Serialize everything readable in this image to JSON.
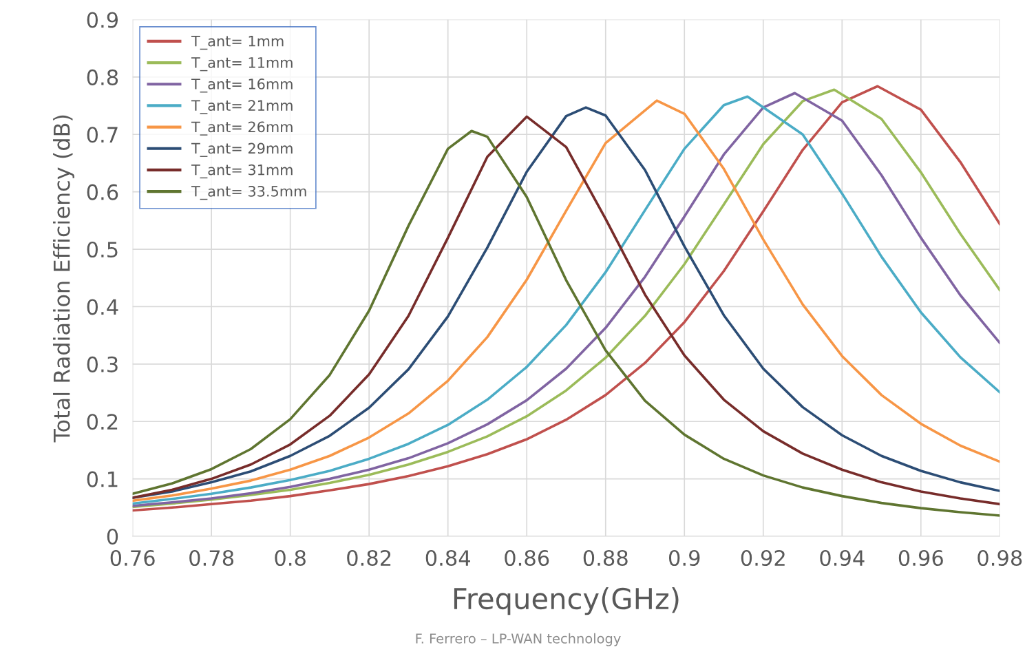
{
  "chart_data": {
    "type": "line",
    "xlabel": "Frequency(GHz)",
    "ylabel": "Total Radiation Efficiency (dB)",
    "annotations": [
      "F. Ferrero – LP-WAN technology"
    ],
    "xlim": [
      0.76,
      0.98
    ],
    "xticks": [
      0.76,
      0.78,
      0.8,
      0.82,
      0.84,
      0.86,
      0.88,
      0.9,
      0.92,
      0.94,
      0.96,
      0.98
    ],
    "ylim": [
      0,
      0.9
    ],
    "yticks": [
      0,
      0.1,
      0.2,
      0.3,
      0.4,
      0.5,
      0.6,
      0.7,
      0.8,
      0.9
    ],
    "grid": true,
    "legend": "top left",
    "marker": "none",
    "line_style": "solid",
    "series": [
      {
        "name": "T_ant= 1mm",
        "color": "#c0504d",
        "x": [
          0.76,
          0.77,
          0.78,
          0.79,
          0.8,
          0.81,
          0.82,
          0.83,
          0.84,
          0.85,
          0.86,
          0.87,
          0.88,
          0.89,
          0.9,
          0.91,
          0.92,
          0.93,
          0.94,
          0.949,
          0.96,
          0.97,
          0.98
        ],
        "values": [
          0.045,
          0.05,
          0.056,
          0.062,
          0.07,
          0.08,
          0.091,
          0.105,
          0.122,
          0.143,
          0.169,
          0.203,
          0.246,
          0.302,
          0.373,
          0.462,
          0.566,
          0.673,
          0.756,
          0.784,
          0.743,
          0.652,
          0.544
        ]
      },
      {
        "name": "T_ant= 11mm",
        "color": "#9bbb59",
        "x": [
          0.76,
          0.77,
          0.78,
          0.79,
          0.8,
          0.81,
          0.82,
          0.83,
          0.84,
          0.85,
          0.86,
          0.87,
          0.88,
          0.89,
          0.9,
          0.91,
          0.92,
          0.93,
          0.938,
          0.95,
          0.96,
          0.97,
          0.98
        ],
        "values": [
          0.051,
          0.057,
          0.064,
          0.072,
          0.081,
          0.093,
          0.107,
          0.125,
          0.147,
          0.174,
          0.209,
          0.254,
          0.311,
          0.384,
          0.474,
          0.578,
          0.683,
          0.758,
          0.778,
          0.727,
          0.634,
          0.527,
          0.429
        ]
      },
      {
        "name": "T_ant= 16mm",
        "color": "#8064a2",
        "x": [
          0.76,
          0.77,
          0.78,
          0.79,
          0.8,
          0.81,
          0.82,
          0.83,
          0.84,
          0.85,
          0.86,
          0.87,
          0.88,
          0.89,
          0.9,
          0.91,
          0.92,
          0.928,
          0.94,
          0.95,
          0.96,
          0.97,
          0.98
        ],
        "values": [
          0.053,
          0.059,
          0.066,
          0.075,
          0.086,
          0.1,
          0.116,
          0.136,
          0.162,
          0.195,
          0.237,
          0.292,
          0.363,
          0.452,
          0.557,
          0.665,
          0.747,
          0.772,
          0.724,
          0.629,
          0.52,
          0.42,
          0.337
        ]
      },
      {
        "name": "T_ant= 21mm",
        "color": "#4bacc6",
        "x": [
          0.76,
          0.77,
          0.78,
          0.79,
          0.8,
          0.81,
          0.82,
          0.83,
          0.84,
          0.85,
          0.86,
          0.87,
          0.88,
          0.89,
          0.9,
          0.91,
          0.916,
          0.93,
          0.94,
          0.95,
          0.96,
          0.97,
          0.98
        ],
        "values": [
          0.057,
          0.065,
          0.074,
          0.085,
          0.098,
          0.114,
          0.135,
          0.161,
          0.194,
          0.238,
          0.295,
          0.368,
          0.46,
          0.568,
          0.675,
          0.751,
          0.766,
          0.7,
          0.597,
          0.487,
          0.39,
          0.312,
          0.251
        ]
      },
      {
        "name": "T_ant= 26mm",
        "color": "#f79646",
        "x": [
          0.76,
          0.77,
          0.78,
          0.79,
          0.8,
          0.81,
          0.82,
          0.83,
          0.84,
          0.85,
          0.86,
          0.87,
          0.88,
          0.893,
          0.9,
          0.91,
          0.92,
          0.93,
          0.94,
          0.95,
          0.96,
          0.97,
          0.98
        ],
        "values": [
          0.062,
          0.071,
          0.083,
          0.097,
          0.116,
          0.14,
          0.172,
          0.214,
          0.271,
          0.347,
          0.447,
          0.567,
          0.685,
          0.759,
          0.736,
          0.64,
          0.517,
          0.404,
          0.314,
          0.246,
          0.196,
          0.158,
          0.13
        ]
      },
      {
        "name": "T_ant= 29mm",
        "color": "#2c4d75",
        "x": [
          0.76,
          0.77,
          0.78,
          0.79,
          0.8,
          0.81,
          0.82,
          0.83,
          0.84,
          0.85,
          0.86,
          0.87,
          0.875,
          0.88,
          0.89,
          0.9,
          0.91,
          0.92,
          0.93,
          0.94,
          0.95,
          0.96,
          0.97,
          0.98
        ],
        "values": [
          0.067,
          0.078,
          0.094,
          0.113,
          0.14,
          0.175,
          0.224,
          0.291,
          0.383,
          0.503,
          0.635,
          0.732,
          0.747,
          0.733,
          0.638,
          0.505,
          0.385,
          0.292,
          0.225,
          0.176,
          0.14,
          0.114,
          0.094,
          0.079
        ]
      },
      {
        "name": "T_ant= 31mm",
        "color": "#772c2a",
        "x": [
          0.76,
          0.77,
          0.78,
          0.79,
          0.8,
          0.81,
          0.82,
          0.83,
          0.84,
          0.85,
          0.86,
          0.87,
          0.88,
          0.89,
          0.9,
          0.91,
          0.92,
          0.93,
          0.94,
          0.95,
          0.96,
          0.97,
          0.98
        ],
        "values": [
          0.067,
          0.081,
          0.1,
          0.125,
          0.16,
          0.21,
          0.282,
          0.384,
          0.52,
          0.661,
          0.731,
          0.678,
          0.553,
          0.421,
          0.315,
          0.238,
          0.183,
          0.144,
          0.116,
          0.094,
          0.078,
          0.066,
          0.056
        ]
      },
      {
        "name": "T_ant= 33.5mm",
        "color": "#5f7530",
        "x": [
          0.76,
          0.77,
          0.78,
          0.79,
          0.8,
          0.81,
          0.82,
          0.83,
          0.84,
          0.846,
          0.85,
          0.86,
          0.87,
          0.88,
          0.89,
          0.9,
          0.91,
          0.92,
          0.93,
          0.94,
          0.95,
          0.96,
          0.97,
          0.98
        ],
        "values": [
          0.074,
          0.092,
          0.117,
          0.152,
          0.204,
          0.281,
          0.393,
          0.541,
          0.675,
          0.706,
          0.696,
          0.591,
          0.446,
          0.324,
          0.236,
          0.177,
          0.135,
          0.106,
          0.085,
          0.07,
          0.058,
          0.049,
          0.042,
          0.036
        ]
      }
    ]
  }
}
